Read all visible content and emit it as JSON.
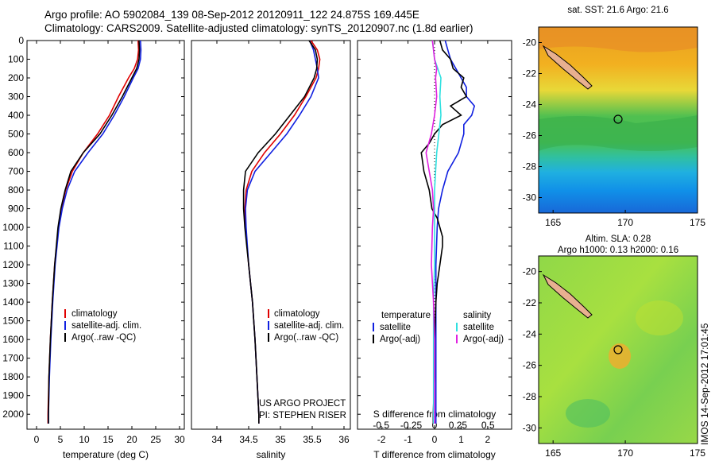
{
  "header": {
    "line1": "Argo profile: AO 5902084_139 08-Sep-2012 20120911_122 24.875S 169.445E",
    "line2": "Climatology: CARS2009. Satellite-adjusted climatology: synTS_20120907.nc (1.8d earlier)"
  },
  "stamp": "IMOS 14-Sep-2012 17:01:45",
  "colors": {
    "climatology": "#e00000",
    "satellite": "#1020e0",
    "argo": "#000000",
    "sal_satellite": "#30e0e0",
    "sal_argo": "#e020e0"
  },
  "chart_data": [
    {
      "type": "line",
      "panel": "temperature",
      "xlabel": "temperature (deg C)",
      "ylabel": "",
      "xlim": [
        -2,
        31
      ],
      "ylim": [
        2080,
        0
      ],
      "xticks": [
        0,
        5,
        10,
        15,
        20,
        25,
        30
      ],
      "yticks": [
        0,
        100,
        200,
        300,
        400,
        500,
        600,
        700,
        800,
        900,
        1000,
        1100,
        1200,
        1300,
        1400,
        1500,
        1600,
        1700,
        1800,
        1900,
        2000
      ],
      "legend": [
        "climatology",
        "satellite-adj. clim.",
        "Argo(..raw -QC)"
      ],
      "series": [
        {
          "name": "climatology",
          "depth": [
            0,
            50,
            100,
            150,
            200,
            300,
            400,
            500,
            600,
            700,
            800,
            900,
            1000,
            1200,
            1400,
            1600,
            1800,
            2000,
            2050
          ],
          "values": [
            21.3,
            21.4,
            21.2,
            20.5,
            19.3,
            17.2,
            15.3,
            12.8,
            9.8,
            7.5,
            6.1,
            5.2,
            4.6,
            3.8,
            3.3,
            2.9,
            2.6,
            2.4,
            2.4
          ]
        },
        {
          "name": "satellite-adj. clim.",
          "depth": [
            0,
            50,
            100,
            150,
            200,
            300,
            400,
            500,
            600,
            700,
            800,
            900,
            1000,
            1200,
            1400,
            1600,
            1800,
            2000,
            2050
          ],
          "values": [
            21.8,
            21.9,
            21.8,
            21.3,
            20.3,
            18.4,
            16.3,
            13.9,
            10.8,
            8.0,
            6.4,
            5.4,
            4.7,
            3.9,
            3.4,
            3.0,
            2.7,
            2.5,
            2.5
          ]
        },
        {
          "name": "Argo(..raw -QC)",
          "depth": [
            0,
            50,
            100,
            150,
            200,
            300,
            400,
            500,
            600,
            700,
            800,
            900,
            1000,
            1200,
            1400,
            1600,
            1800,
            2000,
            2050
          ],
          "values": [
            21.5,
            21.6,
            21.5,
            21.0,
            20.0,
            18.0,
            15.8,
            13.3,
            9.8,
            7.2,
            6.0,
            5.1,
            4.5,
            3.8,
            3.3,
            2.9,
            2.6,
            2.5,
            2.5
          ]
        }
      ]
    },
    {
      "type": "line",
      "panel": "salinity",
      "xlabel": "salinity",
      "xlim": [
        33.6,
        36.1
      ],
      "ylim": [
        2080,
        0
      ],
      "xticks": [
        34,
        34.5,
        35,
        35.5,
        36
      ],
      "legend": [
        "climatology",
        "satellite-adj. clim.",
        "Argo(..raw -QC)"
      ],
      "note1": "US ARGO PROJECT",
      "note2": "PI: STEPHEN RISER",
      "series": [
        {
          "name": "climatology",
          "depth": [
            0,
            50,
            100,
            150,
            200,
            300,
            400,
            500,
            600,
            700,
            800,
            900,
            1000,
            1200,
            1400,
            1600,
            1800,
            2000,
            2050
          ],
          "values": [
            35.48,
            35.58,
            35.62,
            35.6,
            35.56,
            35.4,
            35.22,
            35.0,
            34.75,
            34.55,
            34.46,
            34.44,
            34.45,
            34.5,
            34.56,
            34.6,
            34.63,
            34.66,
            34.66
          ]
        },
        {
          "name": "satellite-adj. clim.",
          "depth": [
            0,
            50,
            100,
            150,
            200,
            300,
            400,
            500,
            600,
            700,
            800,
            900,
            1000,
            1200,
            1400,
            1600,
            1800,
            2000,
            2050
          ],
          "values": [
            35.46,
            35.52,
            35.55,
            35.58,
            35.6,
            35.48,
            35.3,
            35.1,
            34.85,
            34.6,
            34.48,
            34.45,
            34.46,
            34.5,
            34.56,
            34.6,
            34.63,
            34.66,
            34.66
          ]
        },
        {
          "name": "Argo(..raw -QC)",
          "depth": [
            0,
            50,
            100,
            150,
            200,
            300,
            400,
            500,
            600,
            700,
            800,
            900,
            1000,
            1200,
            1400,
            1600,
            1800,
            2000,
            2050
          ],
          "values": [
            35.45,
            35.55,
            35.58,
            35.57,
            35.53,
            35.38,
            35.15,
            34.92,
            34.65,
            34.45,
            34.42,
            34.42,
            34.44,
            34.5,
            34.56,
            34.6,
            34.63,
            34.66,
            34.66
          ]
        }
      ]
    },
    {
      "type": "line",
      "panel": "difference",
      "xlabel": "T difference from climatology",
      "xlabel_top": "S difference from climatology",
      "xlim": [
        -2.9,
        2.9
      ],
      "ylim": [
        2080,
        0
      ],
      "xticks": [
        -2,
        -1,
        0,
        1,
        2
      ],
      "xticks_top": [
        -0.5,
        -0.25,
        0,
        0.25,
        0.5
      ],
      "legend_titles": [
        "temperature",
        "salinity"
      ],
      "legend": [
        "satellite",
        "Argo(-adj)",
        "satellite",
        "Argo(-adj)"
      ],
      "series": [
        {
          "name": "satellite",
          "depth": [
            0,
            50,
            100,
            150,
            200,
            250,
            300,
            350,
            400,
            450,
            500,
            600,
            700,
            800,
            900,
            1000,
            1200,
            1400,
            1600,
            1800,
            2000,
            2050
          ],
          "values": [
            0.4,
            0.5,
            0.6,
            0.8,
            1.0,
            1.2,
            1.2,
            1.5,
            1.4,
            1.1,
            1.1,
            0.9,
            0.5,
            0.3,
            0.15,
            0.1,
            0.05,
            0.05,
            0.05,
            0.05,
            0.05,
            0.05
          ]
        },
        {
          "name": "Argo(-adj)",
          "depth": [
            0,
            50,
            100,
            150,
            200,
            250,
            300,
            350,
            400,
            450,
            500,
            550,
            600,
            700,
            800,
            900,
            950,
            1000,
            1050,
            1100,
            1200,
            1300,
            1400,
            1600,
            1800,
            2000,
            2050
          ],
          "values": [
            0.2,
            0.3,
            0.6,
            0.7,
            1.1,
            1.0,
            1.2,
            0.6,
            1.0,
            0.3,
            0.0,
            -0.2,
            -0.5,
            -0.4,
            -0.2,
            -0.1,
            0.1,
            0.2,
            0.3,
            0.3,
            0.2,
            0.1,
            0.05,
            0.0,
            0.0,
            -0.05,
            -0.05
          ]
        },
        {
          "name": "satellite",
          "depth": [
            0,
            50,
            100,
            150,
            200,
            300,
            400,
            500,
            600,
            700,
            800,
            900,
            1000,
            1200,
            1400,
            1600,
            1800,
            2000,
            2050
          ],
          "values": [
            -0.02,
            -0.01,
            0.0,
            0.03,
            0.06,
            0.05,
            0.06,
            0.04,
            0.02,
            0.01,
            0.0,
            0.0,
            0.0,
            0.0,
            -0.01,
            -0.01,
            -0.01,
            -0.01,
            -0.01
          ]
        },
        {
          "name": "Argo(-adj)",
          "depth": [
            0,
            50,
            100,
            150,
            200,
            300,
            400,
            500,
            600,
            700,
            800,
            900,
            1000,
            1200,
            1400,
            1600,
            1800,
            2000,
            2050
          ],
          "values": [
            -0.02,
            -0.01,
            0.0,
            0.02,
            0.01,
            0.02,
            0.0,
            -0.03,
            -0.08,
            -0.05,
            -0.02,
            -0.01,
            -0.02,
            -0.03,
            -0.01,
            0.0,
            0.0,
            0.0,
            0.0
          ]
        }
      ]
    },
    {
      "type": "heatmap",
      "panel": "sst_map",
      "title": "sat. SST: 21.6 Argo: 21.6",
      "xticks": [
        165,
        170,
        175
      ],
      "yticks": [
        -20,
        -22,
        -24,
        -26,
        -28,
        -30
      ],
      "xlim": [
        164,
        175
      ],
      "ylim": [
        -31,
        -19
      ]
    },
    {
      "type": "heatmap",
      "panel": "sla_map",
      "title1": "Altim. SLA: 0.28",
      "title2": "Argo h1000: 0.13 h2000: 0.16",
      "xticks": [
        165,
        170,
        175
      ],
      "yticks": [
        -20,
        -22,
        -24,
        -26,
        -28,
        -30
      ],
      "xlim": [
        164,
        175
      ],
      "ylim": [
        -31,
        -19
      ]
    }
  ]
}
